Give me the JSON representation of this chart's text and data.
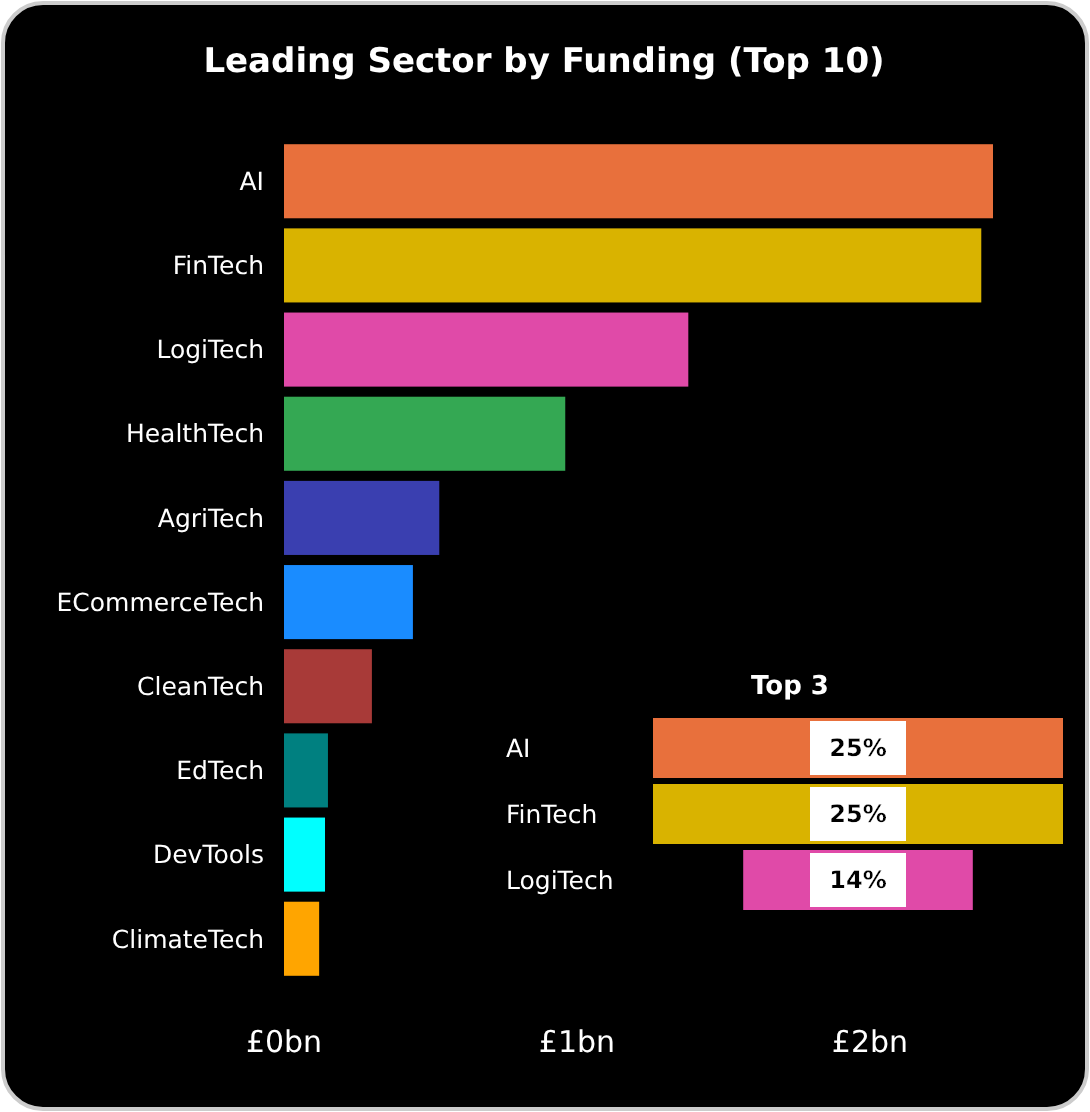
{
  "chart_data": [
    {
      "type": "bar",
      "orientation": "horizontal",
      "title": "Leading Sector by Funding (Top 10)",
      "categories": [
        "AI",
        "FinTech",
        "LogiTech",
        "HealthTech",
        "AgriTech",
        "ECommerceTech",
        "CleanTech",
        "EdTech",
        "DevTools",
        "ClimateTech"
      ],
      "values": [
        2.42,
        2.38,
        1.38,
        0.96,
        0.53,
        0.44,
        0.3,
        0.15,
        0.14,
        0.12
      ],
      "colors": [
        "#e8703c",
        "#d9b300",
        "#e04aa8",
        "#34a853",
        "#3a3fb0",
        "#1a8cff",
        "#a83a38",
        "#008080",
        "#00ffff",
        "#ffa500"
      ],
      "xlim": [
        0,
        2.42
      ],
      "xticks": [
        {
          "value": 0,
          "label": "£0bn"
        },
        {
          "value": 1,
          "label": "£1bn"
        },
        {
          "value": 2,
          "label": "£2bn"
        }
      ],
      "grid": false
    },
    {
      "type": "other",
      "title": "Top 3",
      "categories": [
        "AI",
        "FinTech",
        "LogiTech"
      ],
      "values": [
        25,
        25,
        14
      ],
      "value_labels": [
        "25%",
        "25%",
        "14%"
      ],
      "colors": [
        "#e8703c",
        "#d9b300",
        "#e04aa8"
      ]
    }
  ]
}
